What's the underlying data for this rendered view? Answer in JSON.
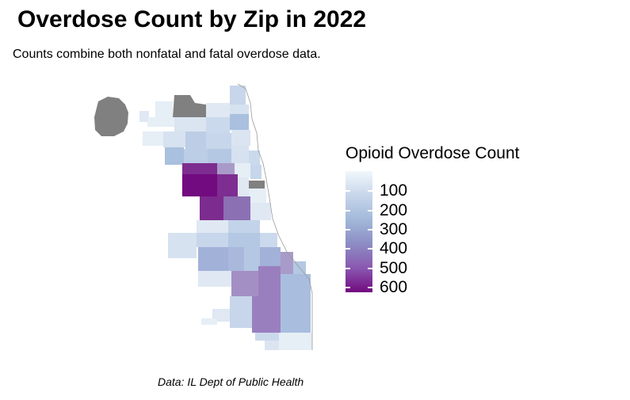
{
  "title": "Overdose Count by Zip in 2022",
  "subtitle": "Counts combine both nonfatal and fatal overdose data.",
  "caption": "Data: IL Dept of Public Health",
  "legend": {
    "title": "Opioid Overdose Count",
    "labels": [
      "100",
      "200",
      "300",
      "400",
      "500",
      "600"
    ]
  },
  "colors": {
    "low": "#f1f8fc",
    "mid": "#a2b9da",
    "high": "#720a80",
    "no_data": "#808080"
  }
}
